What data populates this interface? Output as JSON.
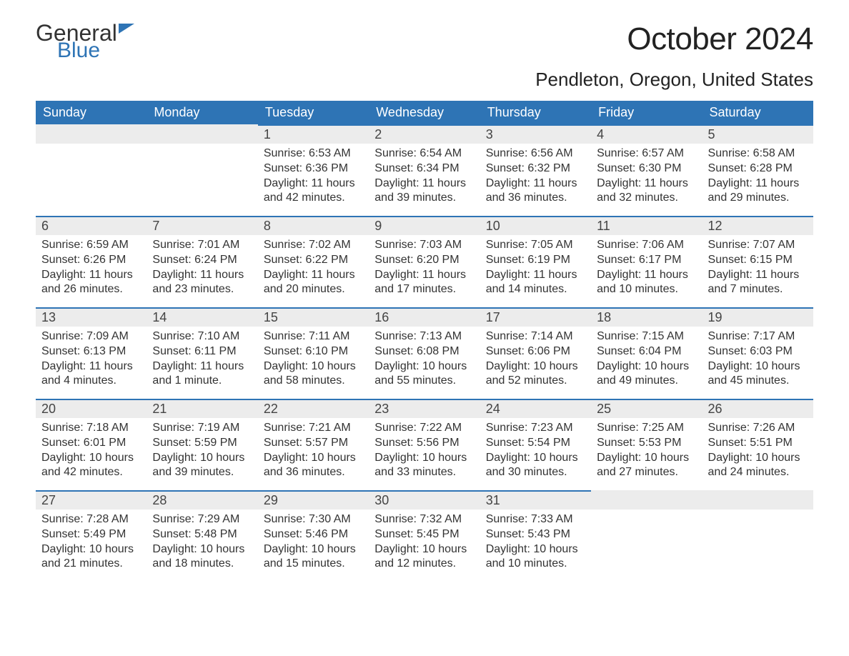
{
  "logo": {
    "word1": "General",
    "word2": "Blue"
  },
  "title": "October 2024",
  "location": "Pendleton, Oregon, United States",
  "colors": {
    "header_bg": "#2e74b5",
    "header_text": "#ffffff",
    "daynum_bg": "#ececec",
    "daynum_border": "#2e74b5",
    "body_text": "#333333",
    "page_bg": "#ffffff"
  },
  "day_labels": [
    "Sunday",
    "Monday",
    "Tuesday",
    "Wednesday",
    "Thursday",
    "Friday",
    "Saturday"
  ],
  "weeks": [
    [
      null,
      null,
      {
        "n": "1",
        "sunrise": "Sunrise: 6:53 AM",
        "sunset": "Sunset: 6:36 PM",
        "dl1": "Daylight: 11 hours",
        "dl2": "and 42 minutes."
      },
      {
        "n": "2",
        "sunrise": "Sunrise: 6:54 AM",
        "sunset": "Sunset: 6:34 PM",
        "dl1": "Daylight: 11 hours",
        "dl2": "and 39 minutes."
      },
      {
        "n": "3",
        "sunrise": "Sunrise: 6:56 AM",
        "sunset": "Sunset: 6:32 PM",
        "dl1": "Daylight: 11 hours",
        "dl2": "and 36 minutes."
      },
      {
        "n": "4",
        "sunrise": "Sunrise: 6:57 AM",
        "sunset": "Sunset: 6:30 PM",
        "dl1": "Daylight: 11 hours",
        "dl2": "and 32 minutes."
      },
      {
        "n": "5",
        "sunrise": "Sunrise: 6:58 AM",
        "sunset": "Sunset: 6:28 PM",
        "dl1": "Daylight: 11 hours",
        "dl2": "and 29 minutes."
      }
    ],
    [
      {
        "n": "6",
        "sunrise": "Sunrise: 6:59 AM",
        "sunset": "Sunset: 6:26 PM",
        "dl1": "Daylight: 11 hours",
        "dl2": "and 26 minutes."
      },
      {
        "n": "7",
        "sunrise": "Sunrise: 7:01 AM",
        "sunset": "Sunset: 6:24 PM",
        "dl1": "Daylight: 11 hours",
        "dl2": "and 23 minutes."
      },
      {
        "n": "8",
        "sunrise": "Sunrise: 7:02 AM",
        "sunset": "Sunset: 6:22 PM",
        "dl1": "Daylight: 11 hours",
        "dl2": "and 20 minutes."
      },
      {
        "n": "9",
        "sunrise": "Sunrise: 7:03 AM",
        "sunset": "Sunset: 6:20 PM",
        "dl1": "Daylight: 11 hours",
        "dl2": "and 17 minutes."
      },
      {
        "n": "10",
        "sunrise": "Sunrise: 7:05 AM",
        "sunset": "Sunset: 6:19 PM",
        "dl1": "Daylight: 11 hours",
        "dl2": "and 14 minutes."
      },
      {
        "n": "11",
        "sunrise": "Sunrise: 7:06 AM",
        "sunset": "Sunset: 6:17 PM",
        "dl1": "Daylight: 11 hours",
        "dl2": "and 10 minutes."
      },
      {
        "n": "12",
        "sunrise": "Sunrise: 7:07 AM",
        "sunset": "Sunset: 6:15 PM",
        "dl1": "Daylight: 11 hours",
        "dl2": "and 7 minutes."
      }
    ],
    [
      {
        "n": "13",
        "sunrise": "Sunrise: 7:09 AM",
        "sunset": "Sunset: 6:13 PM",
        "dl1": "Daylight: 11 hours",
        "dl2": "and 4 minutes."
      },
      {
        "n": "14",
        "sunrise": "Sunrise: 7:10 AM",
        "sunset": "Sunset: 6:11 PM",
        "dl1": "Daylight: 11 hours",
        "dl2": "and 1 minute."
      },
      {
        "n": "15",
        "sunrise": "Sunrise: 7:11 AM",
        "sunset": "Sunset: 6:10 PM",
        "dl1": "Daylight: 10 hours",
        "dl2": "and 58 minutes."
      },
      {
        "n": "16",
        "sunrise": "Sunrise: 7:13 AM",
        "sunset": "Sunset: 6:08 PM",
        "dl1": "Daylight: 10 hours",
        "dl2": "and 55 minutes."
      },
      {
        "n": "17",
        "sunrise": "Sunrise: 7:14 AM",
        "sunset": "Sunset: 6:06 PM",
        "dl1": "Daylight: 10 hours",
        "dl2": "and 52 minutes."
      },
      {
        "n": "18",
        "sunrise": "Sunrise: 7:15 AM",
        "sunset": "Sunset: 6:04 PM",
        "dl1": "Daylight: 10 hours",
        "dl2": "and 49 minutes."
      },
      {
        "n": "19",
        "sunrise": "Sunrise: 7:17 AM",
        "sunset": "Sunset: 6:03 PM",
        "dl1": "Daylight: 10 hours",
        "dl2": "and 45 minutes."
      }
    ],
    [
      {
        "n": "20",
        "sunrise": "Sunrise: 7:18 AM",
        "sunset": "Sunset: 6:01 PM",
        "dl1": "Daylight: 10 hours",
        "dl2": "and 42 minutes."
      },
      {
        "n": "21",
        "sunrise": "Sunrise: 7:19 AM",
        "sunset": "Sunset: 5:59 PM",
        "dl1": "Daylight: 10 hours",
        "dl2": "and 39 minutes."
      },
      {
        "n": "22",
        "sunrise": "Sunrise: 7:21 AM",
        "sunset": "Sunset: 5:57 PM",
        "dl1": "Daylight: 10 hours",
        "dl2": "and 36 minutes."
      },
      {
        "n": "23",
        "sunrise": "Sunrise: 7:22 AM",
        "sunset": "Sunset: 5:56 PM",
        "dl1": "Daylight: 10 hours",
        "dl2": "and 33 minutes."
      },
      {
        "n": "24",
        "sunrise": "Sunrise: 7:23 AM",
        "sunset": "Sunset: 5:54 PM",
        "dl1": "Daylight: 10 hours",
        "dl2": "and 30 minutes."
      },
      {
        "n": "25",
        "sunrise": "Sunrise: 7:25 AM",
        "sunset": "Sunset: 5:53 PM",
        "dl1": "Daylight: 10 hours",
        "dl2": "and 27 minutes."
      },
      {
        "n": "26",
        "sunrise": "Sunrise: 7:26 AM",
        "sunset": "Sunset: 5:51 PM",
        "dl1": "Daylight: 10 hours",
        "dl2": "and 24 minutes."
      }
    ],
    [
      {
        "n": "27",
        "sunrise": "Sunrise: 7:28 AM",
        "sunset": "Sunset: 5:49 PM",
        "dl1": "Daylight: 10 hours",
        "dl2": "and 21 minutes."
      },
      {
        "n": "28",
        "sunrise": "Sunrise: 7:29 AM",
        "sunset": "Sunset: 5:48 PM",
        "dl1": "Daylight: 10 hours",
        "dl2": "and 18 minutes."
      },
      {
        "n": "29",
        "sunrise": "Sunrise: 7:30 AM",
        "sunset": "Sunset: 5:46 PM",
        "dl1": "Daylight: 10 hours",
        "dl2": "and 15 minutes."
      },
      {
        "n": "30",
        "sunrise": "Sunrise: 7:32 AM",
        "sunset": "Sunset: 5:45 PM",
        "dl1": "Daylight: 10 hours",
        "dl2": "and 12 minutes."
      },
      {
        "n": "31",
        "sunrise": "Sunrise: 7:33 AM",
        "sunset": "Sunset: 5:43 PM",
        "dl1": "Daylight: 10 hours",
        "dl2": "and 10 minutes."
      },
      null,
      null
    ]
  ]
}
